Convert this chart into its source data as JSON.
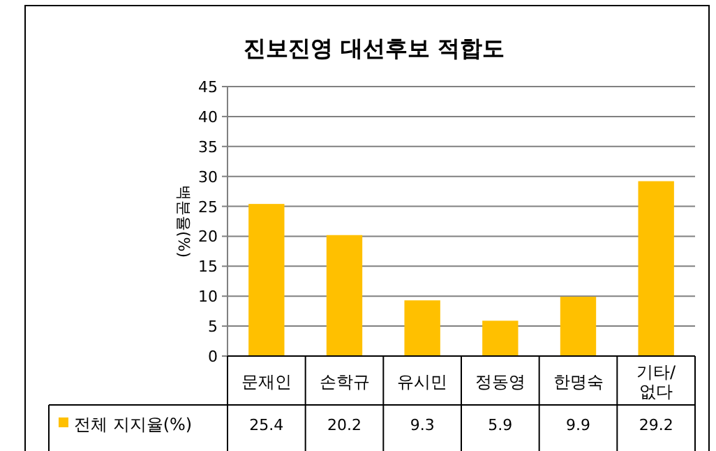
{
  "chart_data": {
    "type": "bar",
    "title": "진보진영 대선후보 적합도",
    "ylabel": "백분율(%)",
    "categories": [
      "문재인",
      "손학규",
      "유시민",
      "정동영",
      "한명숙",
      "기타/\n없다"
    ],
    "series": [
      {
        "name": "전체 지지율(%)",
        "color": "#ffc000",
        "values": [
          25.4,
          20.2,
          9.3,
          5.9,
          9.9,
          29.2
        ]
      }
    ],
    "ylim": [
      0,
      45
    ],
    "yticks": [
      0,
      5,
      10,
      15,
      20,
      25,
      30,
      35,
      40,
      45
    ],
    "grid": "y",
    "data_labels": true,
    "legend": "bottom"
  }
}
